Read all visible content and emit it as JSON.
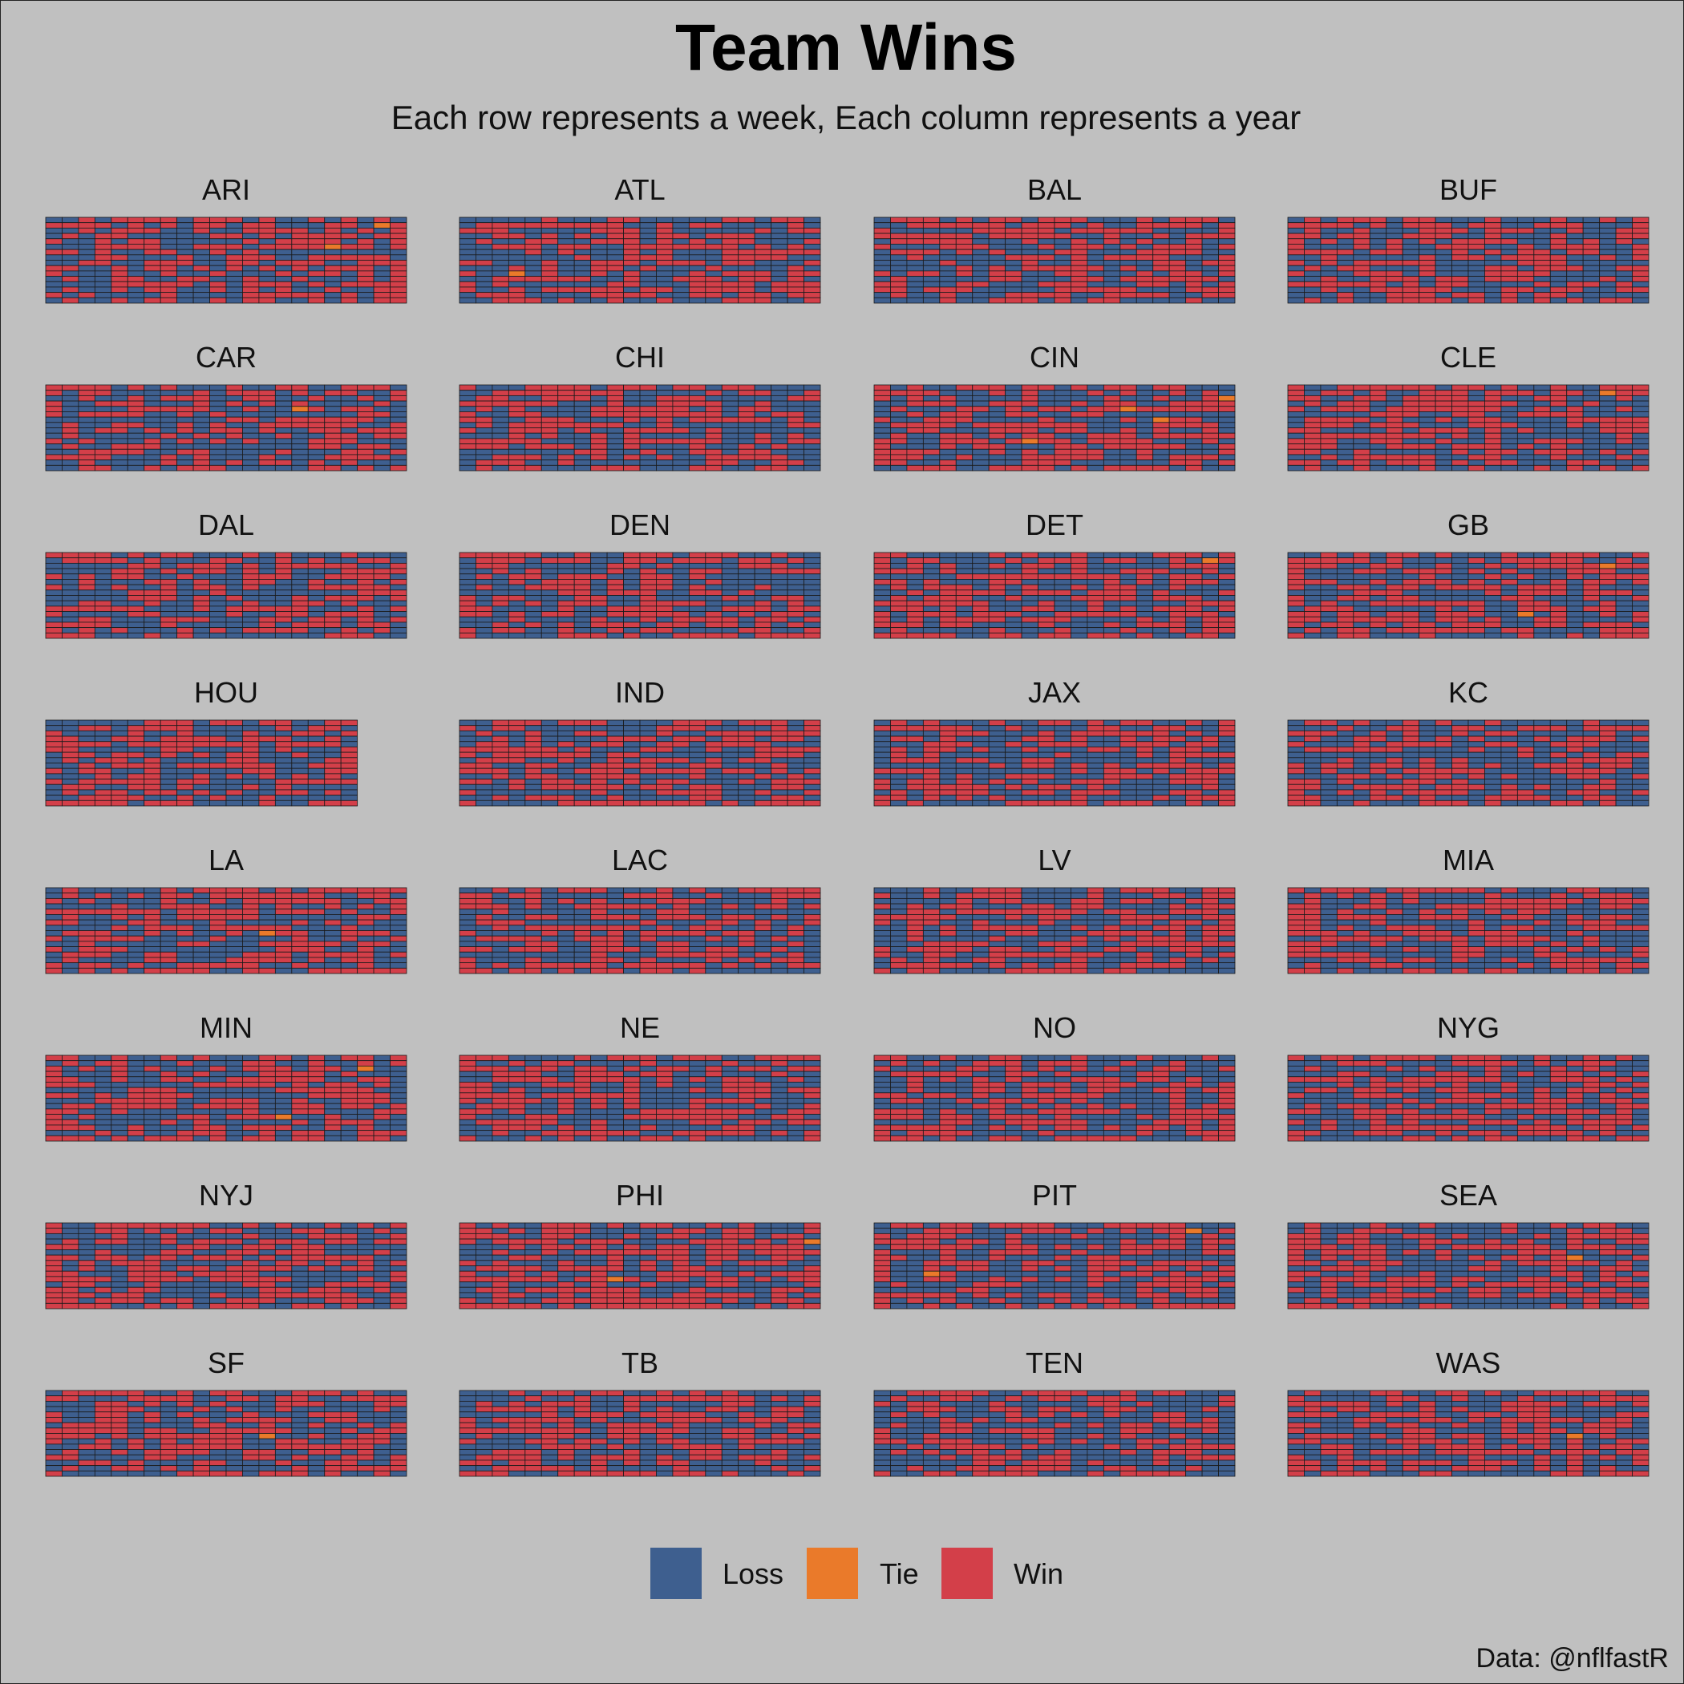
{
  "chart_data": {
    "type": "heatmap",
    "title": "Team Wins",
    "subtitle": "Each row represents a week, Each column represents a year",
    "caption": "Data: @nflfastR",
    "legend": {
      "position": "bottom",
      "entries": [
        {
          "label": "Loss",
          "color": "#3e5f8f"
        },
        {
          "label": "Tie",
          "color": "#ea7a2a"
        },
        {
          "label": "Win",
          "color": "#d33f49"
        }
      ]
    },
    "cell_rows_per_panel": 16,
    "facets": [
      {
        "team": "ARI",
        "columns": 22,
        "ties": [
          [
            17,
            5
          ],
          [
            20,
            1
          ]
        ]
      },
      {
        "team": "ATL",
        "columns": 22,
        "ties": [
          [
            3,
            10
          ]
        ]
      },
      {
        "team": "BAL",
        "columns": 22,
        "ties": []
      },
      {
        "team": "BUF",
        "columns": 22,
        "ties": []
      },
      {
        "team": "CAR",
        "columns": 22,
        "ties": [
          [
            15,
            4
          ]
        ]
      },
      {
        "team": "CHI",
        "columns": 22,
        "ties": []
      },
      {
        "team": "CIN",
        "columns": 22,
        "ties": [
          [
            9,
            10
          ],
          [
            15,
            4
          ],
          [
            17,
            6
          ],
          [
            21,
            2
          ]
        ]
      },
      {
        "team": "CLE",
        "columns": 22,
        "ties": [
          [
            19,
            1
          ]
        ]
      },
      {
        "team": "DAL",
        "columns": 22,
        "ties": []
      },
      {
        "team": "DEN",
        "columns": 22,
        "ties": []
      },
      {
        "team": "DET",
        "columns": 22,
        "ties": [
          [
            20,
            1
          ]
        ]
      },
      {
        "team": "GB",
        "columns": 22,
        "ties": [
          [
            14,
            11
          ],
          [
            19,
            2
          ]
        ]
      },
      {
        "team": "HOU",
        "columns": 19,
        "ties": []
      },
      {
        "team": "IND",
        "columns": 22,
        "ties": []
      },
      {
        "team": "JAX",
        "columns": 22,
        "ties": []
      },
      {
        "team": "KC",
        "columns": 22,
        "ties": []
      },
      {
        "team": "LA",
        "columns": 22,
        "ties": [
          [
            13,
            8
          ]
        ]
      },
      {
        "team": "LAC",
        "columns": 22,
        "ties": []
      },
      {
        "team": "LV",
        "columns": 22,
        "ties": []
      },
      {
        "team": "MIA",
        "columns": 22,
        "ties": []
      },
      {
        "team": "MIN",
        "columns": 22,
        "ties": [
          [
            14,
            11
          ],
          [
            19,
            2
          ]
        ]
      },
      {
        "team": "NE",
        "columns": 22,
        "ties": []
      },
      {
        "team": "NO",
        "columns": 22,
        "ties": []
      },
      {
        "team": "NYG",
        "columns": 22,
        "ties": []
      },
      {
        "team": "NYJ",
        "columns": 22,
        "ties": []
      },
      {
        "team": "PHI",
        "columns": 22,
        "ties": [
          [
            9,
            10
          ],
          [
            21,
            3
          ]
        ]
      },
      {
        "team": "PIT",
        "columns": 22,
        "ties": [
          [
            3,
            9
          ],
          [
            19,
            1
          ]
        ]
      },
      {
        "team": "SEA",
        "columns": 22,
        "ties": [
          [
            17,
            6
          ]
        ]
      },
      {
        "team": "SF",
        "columns": 22,
        "ties": [
          [
            13,
            8
          ]
        ]
      },
      {
        "team": "TB",
        "columns": 22,
        "ties": []
      },
      {
        "team": "TEN",
        "columns": 22,
        "ties": []
      },
      {
        "team": "WAS",
        "columns": 22,
        "ties": [
          [
            17,
            8
          ]
        ]
      }
    ]
  }
}
